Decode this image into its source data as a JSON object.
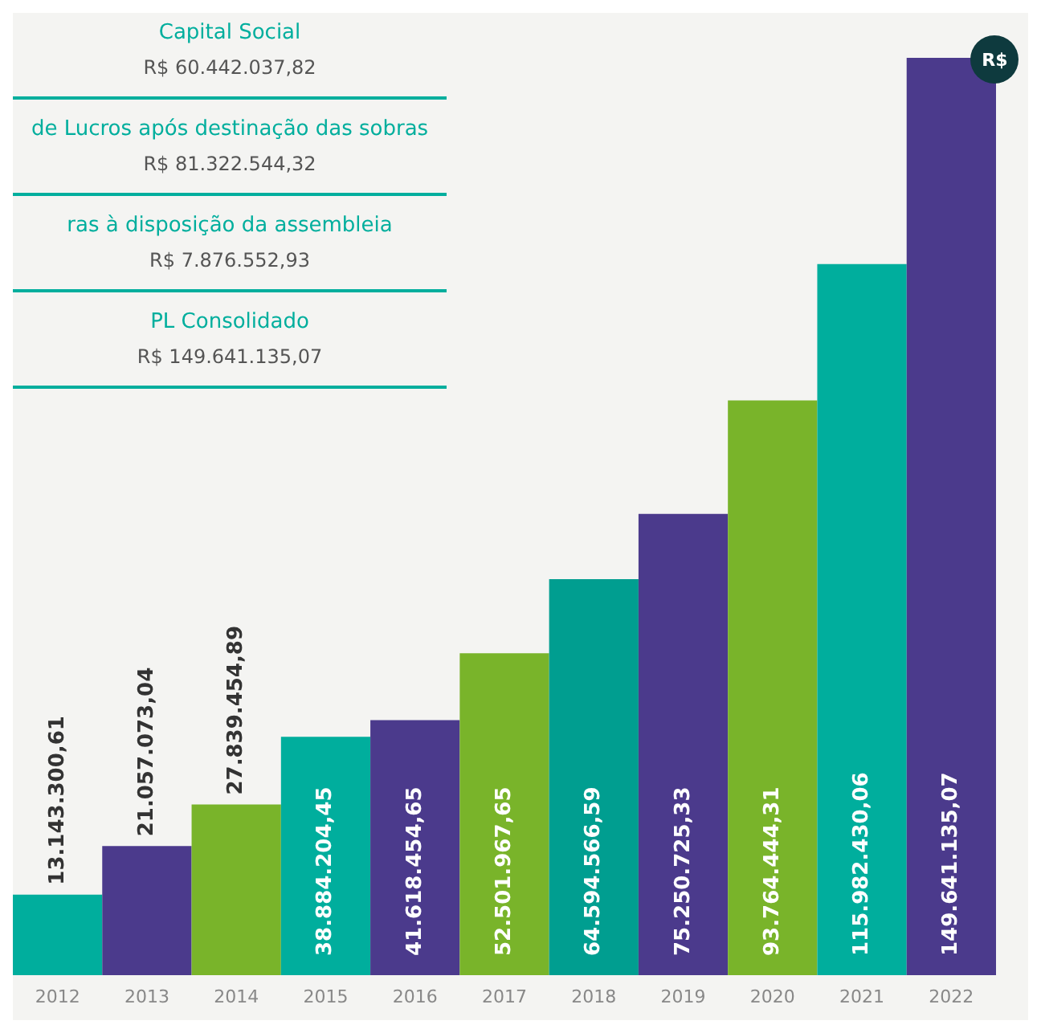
{
  "chart_data": {
    "type": "bar",
    "categories": [
      "2012",
      "2013",
      "2014",
      "2015",
      "2016",
      "2017",
      "2018",
      "2019",
      "2020",
      "2021",
      "2022"
    ],
    "values": [
      13143300.61,
      21057073.04,
      27839454.89,
      38884204.45,
      41618454.65,
      52501967.65,
      64594566.59,
      75250725.33,
      93764444.31,
      115982430.06,
      149641135.07
    ],
    "value_labels": [
      "13.143.300,61",
      "21.057.073,04",
      "27.839.454,89",
      "38.884.204,45",
      "41.618.454,65",
      "52.501.967,65",
      "64.594.566,59",
      "75.250.725,33",
      "93.764.444,31",
      "115.982.430,06",
      "149.641.135,07"
    ],
    "colors": [
      "#00ae9d",
      "#4b3a8c",
      "#79b42a",
      "#00ae9d",
      "#4b3a8c",
      "#79b42a",
      "#009e90",
      "#4b3a8c",
      "#79b42a",
      "#00ae9d",
      "#4b3a8c"
    ],
    "annotations": [
      "Capital Social",
      "R$ 60.442.037,82",
      "de Lucros após destinação das sobras",
      "R$ 81.322.544,32",
      "ras à disposição da assembleia",
      "R$ 7.876.552,93",
      "PL Consolidado",
      "R$ 149.641.135,07",
      {
        "text": "R$",
        "x": "2022",
        "y": 149641135.07
      }
    ]
  }
}
